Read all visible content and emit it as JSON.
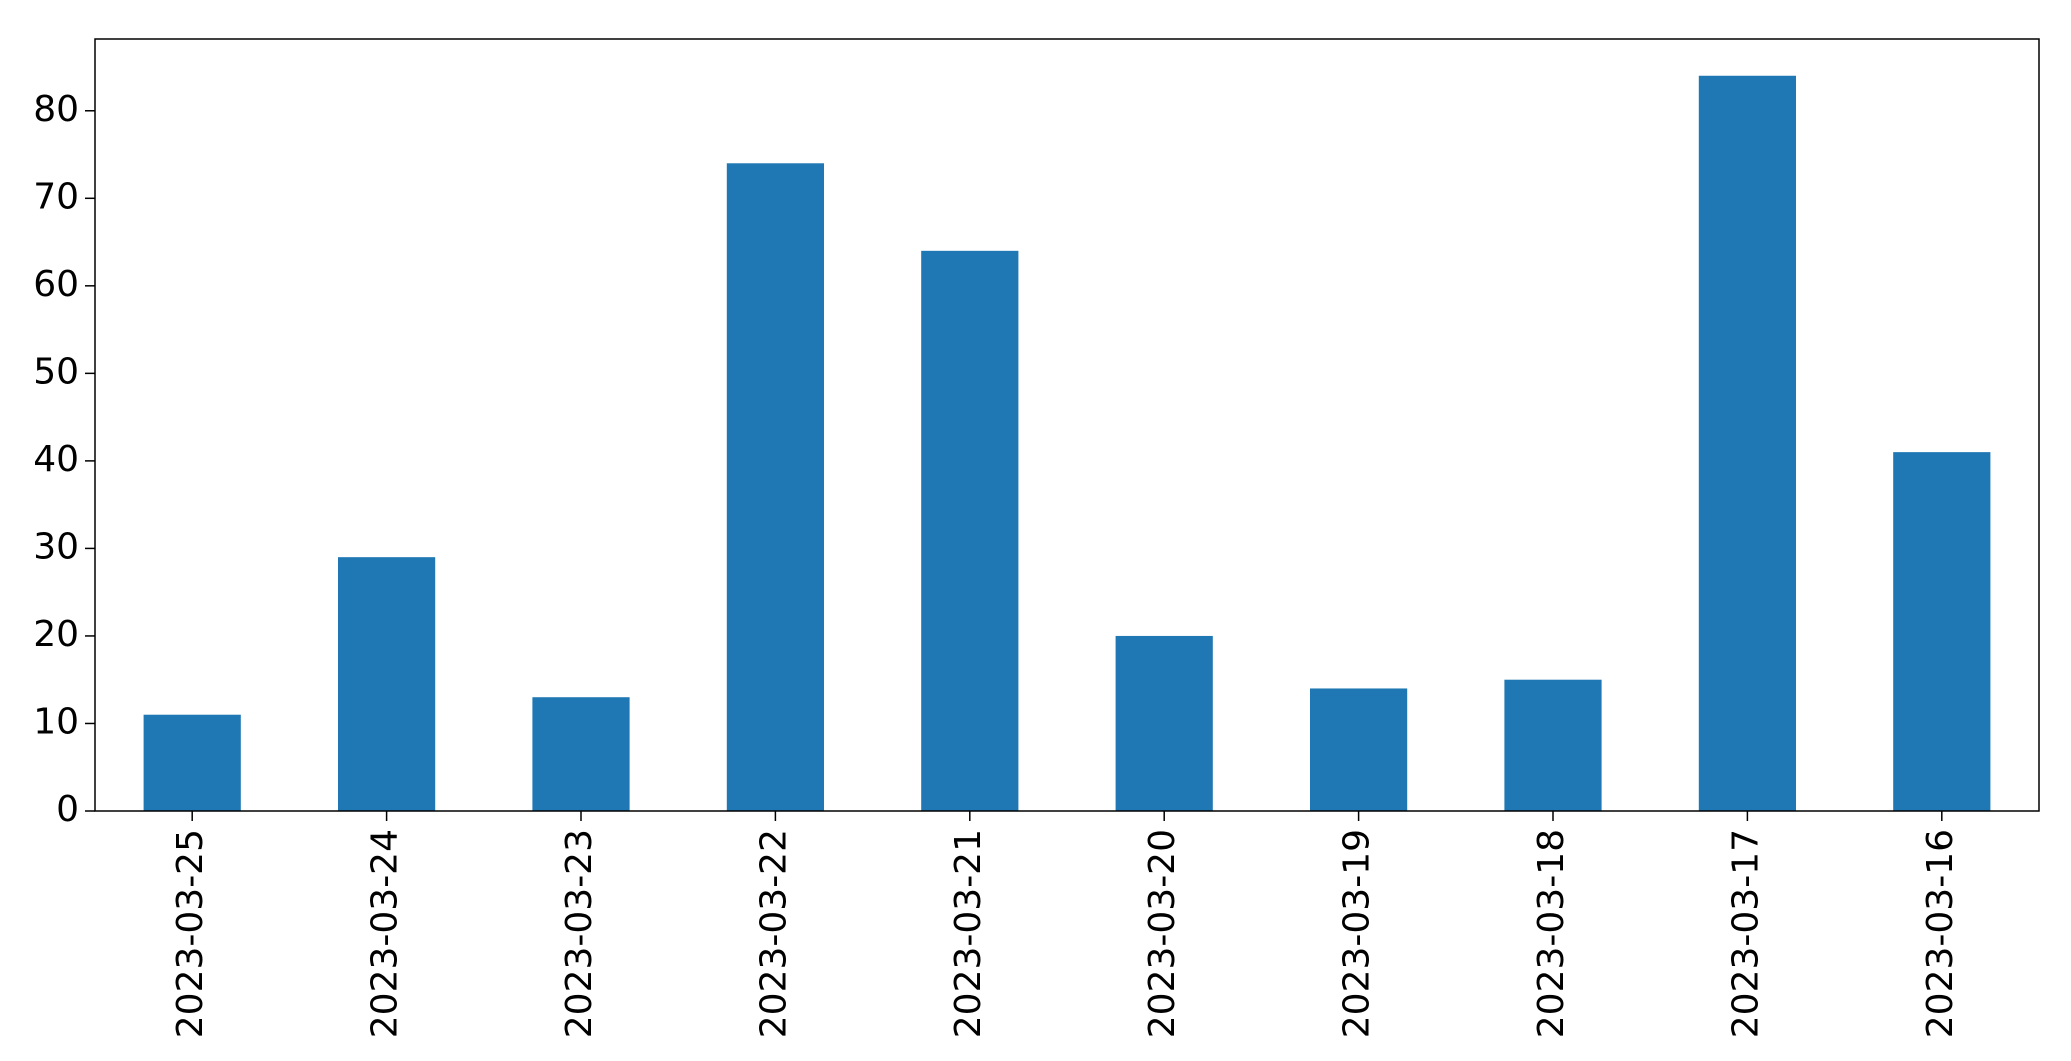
{
  "chart_data": {
    "type": "bar",
    "title": "",
    "xlabel": "",
    "ylabel": "",
    "categories": [
      "2023-03-25",
      "2023-03-24",
      "2023-03-23",
      "2023-03-22",
      "2023-03-21",
      "2023-03-20",
      "2023-03-19",
      "2023-03-18",
      "2023-03-17",
      "2023-03-16"
    ],
    "values": [
      11,
      29,
      13,
      74,
      64,
      20,
      14,
      15,
      84,
      41
    ],
    "ylim": [
      0,
      88.2
    ],
    "yticks": [
      0,
      10,
      20,
      30,
      40,
      50,
      60,
      70,
      80
    ],
    "ytick_labels": [
      "0",
      "10",
      "20",
      "30",
      "40",
      "50",
      "60",
      "70",
      "80"
    ],
    "grid": false,
    "legend": "none",
    "bar_color": "#1f77b4",
    "x_tick_rotation": "vertical"
  }
}
